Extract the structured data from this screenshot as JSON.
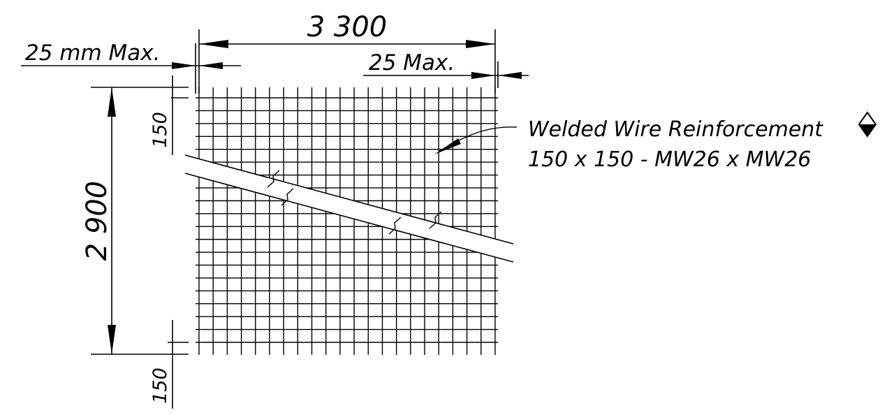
{
  "colors": {
    "ink": "#000000",
    "paper": "#ffffff"
  },
  "dimensions": {
    "overall_width": "3 300",
    "left_edge_max": "25 mm Max.",
    "right_edge_max": "25 Max.",
    "overall_height": "2 900",
    "top_spacing": "150",
    "bottom_spacing": "150"
  },
  "mesh": {
    "vertical_wires": 22,
    "horizontal_wires": 20
  },
  "callout": {
    "line1": "Welded Wire Reinforcement",
    "line2": "150 x 150 - MW26 x MW26",
    "symbol_icon": "diamond-half-filled-icon"
  }
}
